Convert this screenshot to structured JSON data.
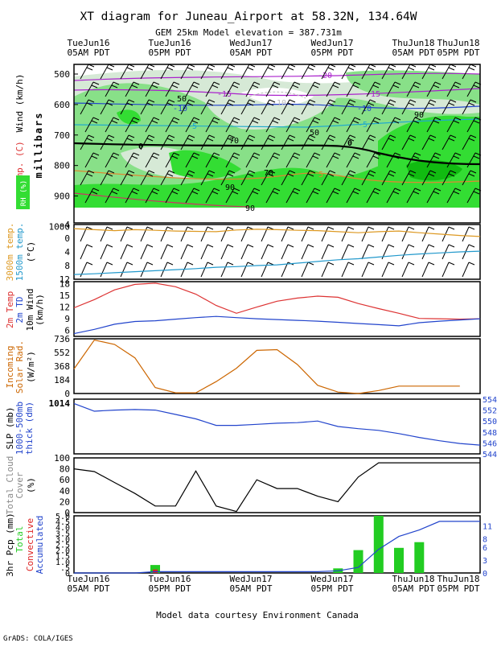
{
  "header": {
    "title": "XT diagram for Juneau_Airport at 58.32N, 134.64W",
    "subtitle": "GEM 25km Model elevation = 387.731m"
  },
  "time_labels": [
    {
      "day": "TueJun16",
      "time": "05AM PDT"
    },
    {
      "day": "TueJun16",
      "time": "05PM PDT"
    },
    {
      "day": "WedJun17",
      "time": "05AM PDT"
    },
    {
      "day": "WedJun17",
      "time": "05PM PDT"
    },
    {
      "day": "ThuJun18",
      "time": "05AM PDT"
    },
    {
      "day": "ThuJun18",
      "time": "05PM PDT"
    }
  ],
  "footer": {
    "credit": "Model data courtesy Environment Canada",
    "grads": "GrADS: COLA/IGES"
  },
  "colors": {
    "rh_light": "#d6e9d6",
    "rh_mid": "#88e088",
    "rh_strong": "#33dd33",
    "rh_max": "#11bb11",
    "temp_2m": "#dd3333",
    "td_2m": "#2244cc",
    "temp_3000": "#dd9922",
    "temp_1500": "#2299cc",
    "solar": "#cc6600",
    "slp": "#000000",
    "thick": "#2244cc",
    "cloud": "#000000",
    "precip_total": "#22cc22",
    "precip_conv": "#dd2222",
    "accum": "#2244cc"
  },
  "chart_data": [
    {
      "type": "heatmap",
      "name": "xt-cross-section",
      "ylabel_temp": "Temp. (C)",
      "ylabel_wind": "Wind (km/h)",
      "ylabel_mb": "millibars",
      "ylabel_rh": "RH (%)",
      "y_ticks": [
        "500",
        "600",
        "700",
        "800",
        "900",
        "1000"
      ],
      "ylim": [
        1000,
        500
      ],
      "rh_contour_labels": [
        "50",
        "50",
        "70",
        "70",
        "90",
        "90",
        "90"
      ],
      "temp_contour_labels": [
        "-20",
        "-15",
        "-15",
        "-10",
        "-10",
        "-10",
        "-5",
        "-5",
        "0",
        "0",
        "5"
      ]
    },
    {
      "type": "line",
      "name": "upper-temps",
      "ylabel_a": "3000m temp.",
      "ylabel_b": "1500m temp.",
      "ylabel_unit": "(°C)",
      "y_ticks": [
        "-4",
        "0",
        "4",
        "8",
        "12"
      ],
      "ylim": [
        12,
        -4
      ],
      "x": [
        0,
        3,
        6,
        9,
        12,
        15,
        18,
        21,
        24,
        27,
        30,
        33,
        36,
        39,
        42,
        45,
        48,
        51,
        54,
        57,
        60
      ],
      "series": [
        {
          "name": "3000m temp.",
          "values": [
            -2.8,
            -2.5,
            -2.2,
            -2.5,
            -2.3,
            -2.1,
            -2.0,
            -1.9,
            -2.4,
            -2.6,
            -2.5,
            -2.3,
            -2.2,
            -1.9,
            -1.6,
            -1.9,
            -2.1,
            -1.6,
            -1.2,
            -0.8,
            -0.5
          ]
        },
        {
          "name": "1500m temp.",
          "values": [
            10.6,
            10.4,
            10.1,
            9.8,
            9.5,
            9.2,
            8.9,
            8.5,
            8.3,
            8.0,
            7.8,
            7.3,
            6.8,
            6.3,
            6.0,
            5.5,
            5.0,
            4.6,
            4.3,
            4.0,
            3.8
          ]
        }
      ]
    },
    {
      "type": "line",
      "name": "surface-temps",
      "ylabel_a": "2m Temp",
      "ylabel_b": "2m TD",
      "ylabel_c": "10m Wind",
      "ylabel_unit": "(km/h)",
      "y_ticks": [
        "6",
        "9",
        "12",
        "15",
        "18"
      ],
      "ylim": [
        4.5,
        18.5
      ],
      "x": [
        0,
        3,
        6,
        9,
        12,
        15,
        18,
        21,
        24,
        27,
        30,
        33,
        36,
        39,
        42,
        45,
        48,
        51,
        54,
        57,
        60
      ],
      "series": [
        {
          "name": "2m Temp",
          "values": [
            11.8,
            13.9,
            16.4,
            17.8,
            18.1,
            17.2,
            15.3,
            12.4,
            10.4,
            12.0,
            13.5,
            14.3,
            14.8,
            14.5,
            12.9,
            11.6,
            10.4,
            9.1,
            9.0,
            8.9,
            9.0
          ]
        },
        {
          "name": "2m TD",
          "values": [
            5.2,
            6.3,
            7.6,
            8.3,
            8.5,
            8.9,
            9.3,
            9.6,
            9.3,
            9.0,
            8.8,
            8.6,
            8.4,
            8.1,
            7.8,
            7.5,
            7.2,
            8.0,
            8.4,
            8.7,
            9.0
          ]
        }
      ]
    },
    {
      "type": "line",
      "name": "solar-radiation",
      "ylabel_a": "Incoming",
      "ylabel_b": "Solar Rad.",
      "ylabel_unit": "(W/m²)",
      "y_ticks": [
        "0",
        "184",
        "368",
        "552",
        "736"
      ],
      "ylim": [
        0,
        736
      ],
      "x": [
        0,
        3,
        6,
        9,
        12,
        15,
        18,
        21,
        24,
        27,
        30,
        33,
        36,
        39,
        42,
        45,
        48,
        51,
        54,
        57
      ],
      "series": [
        {
          "name": "Solar",
          "values": [
            330,
            720,
            660,
            480,
            80,
            10,
            10,
            160,
            340,
            580,
            590,
            390,
            110,
            20,
            0,
            40,
            100,
            100,
            100,
            100
          ]
        }
      ]
    },
    {
      "type": "line",
      "name": "slp-thickness",
      "ylabel_a": "SLP (mb)",
      "ylabel_b": "1000-500mb",
      "ylabel_c": "thick (dm)",
      "y_ticks_left": [
        "1014"
      ],
      "y_ticks_right": [
        "554",
        "552",
        "550",
        "548",
        "546",
        "544"
      ],
      "ylim_right": [
        544,
        554
      ],
      "x": [
        0,
        3,
        6,
        9,
        12,
        15,
        18,
        21,
        24,
        27,
        30,
        33,
        36,
        39,
        42,
        45,
        48,
        51,
        54,
        57,
        60
      ],
      "series": [
        {
          "name": "SLP",
          "values": [
            1014,
            1014,
            1014,
            1014,
            1014,
            1014,
            1014,
            1014,
            1014,
            1014,
            1014,
            1014,
            1014,
            1014,
            1014,
            1014,
            1014,
            1014,
            1014,
            1014,
            1014
          ]
        },
        {
          "name": "Thickness",
          "values": [
            553.2,
            551.8,
            552.0,
            552.1,
            552.0,
            551.2,
            550.4,
            549.2,
            549.2,
            549.4,
            549.6,
            549.7,
            550.0,
            549.0,
            548.6,
            548.3,
            547.7,
            547.0,
            546.4,
            545.9,
            545.6
          ]
        }
      ]
    },
    {
      "type": "line",
      "name": "cloud-cover",
      "ylabel_a": "Total Cloud",
      "ylabel_b": "Cover",
      "ylabel_unit": "(%)",
      "y_ticks": [
        "0",
        "20",
        "40",
        "60",
        "80",
        "100"
      ],
      "ylim": [
        0,
        100
      ],
      "x": [
        0,
        3,
        6,
        9,
        12,
        15,
        18,
        21,
        24,
        27,
        30,
        33,
        36,
        39,
        42,
        45,
        48,
        51,
        54,
        57,
        60
      ],
      "series": [
        {
          "name": "Cloud",
          "values": [
            80,
            75,
            55,
            35,
            12,
            12,
            76,
            12,
            2,
            60,
            44,
            44,
            30,
            20,
            65,
            91,
            91,
            91,
            91,
            91,
            91
          ]
        }
      ]
    },
    {
      "type": "bar",
      "name": "precipitation",
      "ylabel_a": "3hr Pcp (mm)",
      "ylabel_b": "Total",
      "ylabel_c": "Convective",
      "ylabel_d": "Accumulated",
      "y_ticks_left": [
        "0",
        ".5",
        "1.0",
        "1.5",
        "2.0",
        "2.5",
        "3.0",
        "3.5",
        "4.0",
        "4.5",
        "5.0"
      ],
      "y_ticks_right": [
        "0",
        "3",
        "6",
        "8",
        "11"
      ],
      "ylim_left": [
        0,
        5
      ],
      "ylim_right": [
        0,
        13.3
      ],
      "x": [
        0,
        3,
        6,
        9,
        12,
        15,
        18,
        21,
        24,
        27,
        30,
        33,
        36,
        39,
        42,
        45,
        48,
        51,
        54,
        57,
        60
      ],
      "series": [
        {
          "name": "Total",
          "values": [
            0,
            0,
            0,
            0,
            0.7,
            0,
            0,
            0,
            0,
            0,
            0,
            0,
            0,
            0.4,
            2.0,
            5.0,
            2.2,
            2.7,
            0,
            0,
            0
          ]
        },
        {
          "name": "Convective",
          "values": [
            0,
            0,
            0,
            0,
            0.3,
            0,
            0,
            0,
            0,
            0,
            0,
            0,
            0,
            0,
            0,
            0,
            0,
            0,
            0,
            0,
            0
          ]
        },
        {
          "name": "Accumulated",
          "values": [
            0,
            0,
            0,
            0,
            0.3,
            0.3,
            0.3,
            0.3,
            0.3,
            0.3,
            0.3,
            0.3,
            0.3,
            0.5,
            1.3,
            5.5,
            8.5,
            10.0,
            12.0,
            12.0,
            12.0
          ]
        }
      ]
    }
  ]
}
